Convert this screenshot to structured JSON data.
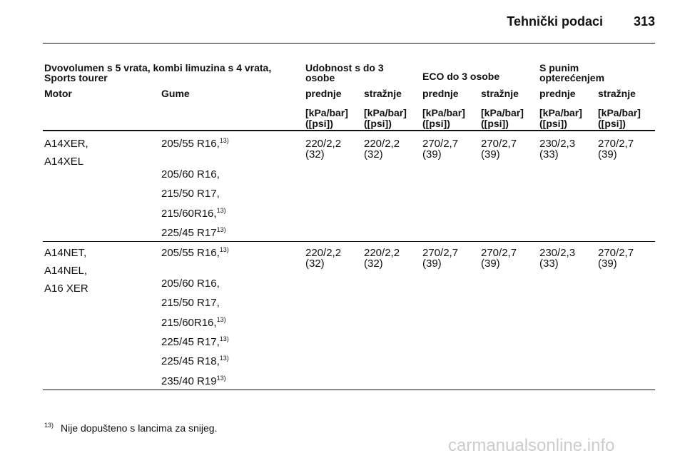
{
  "header": {
    "title": "Tehnički podaci",
    "page": "313"
  },
  "table": {
    "group_headers": [
      "Dvovolumen s 5 vrata, kombi limuzina s 4 vrata, Sports tourer",
      "Udobnost s do 3 osobe",
      "ECO do 3 osobe",
      "S punim opterećenjem"
    ],
    "columns": [
      "Motor",
      "Gume",
      "prednje",
      "stražnje",
      "prednje",
      "stražnje",
      "prednje",
      "stražnje"
    ],
    "units": [
      [
        "[kPa/bar]",
        "([psi])"
      ],
      [
        "[kPa/bar]",
        "([psi])"
      ],
      [
        "[kPa/bar]",
        "([psi])"
      ],
      [
        "[kPa/bar]",
        "([psi])"
      ],
      [
        "[kPa/bar]",
        "([psi])"
      ],
      [
        "[kPa/bar]",
        "([psi])"
      ]
    ],
    "rows": [
      {
        "motors": [
          "A14XER,",
          "A14XEL"
        ],
        "tires": [
          {
            "text": "205/55 R16,",
            "note": "13)"
          },
          {
            "text": "205/60 R16,"
          },
          {
            "text": "215/50 R17,"
          },
          {
            "text": "215/60R16,",
            "note": "13)"
          },
          {
            "text": "225/45 R17",
            "note": "13)"
          }
        ],
        "pressures": [
          [
            "220/2,2",
            "(32)"
          ],
          [
            "220/2,2",
            "(32)"
          ],
          [
            "270/2,7",
            "(39)"
          ],
          [
            "270/2,7",
            "(39)"
          ],
          [
            "230/2,3",
            "(33)"
          ],
          [
            "270/2,7",
            "(39)"
          ]
        ]
      },
      {
        "motors": [
          "A14NET,",
          "A14NEL,",
          "A16 XER"
        ],
        "tires": [
          {
            "text": "205/55 R16,",
            "note": "13)"
          },
          {
            "text": "205/60 R16,"
          },
          {
            "text": "215/50 R17,"
          },
          {
            "text": "215/60R16,",
            "note": "13)"
          },
          {
            "text": "225/45 R17,",
            "note": "13)"
          },
          {
            "text": "225/45 R18,",
            "note": "13)"
          },
          {
            "text": "235/40 R19",
            "note": "13)"
          }
        ],
        "pressures": [
          [
            "220/2,2",
            "(32)"
          ],
          [
            "220/2,2",
            "(32)"
          ],
          [
            "270/2,7",
            "(39)"
          ],
          [
            "270/2,7",
            "(39)"
          ],
          [
            "230/2,3",
            "(33)"
          ],
          [
            "270/2,7",
            "(39)"
          ]
        ]
      }
    ]
  },
  "footnote": {
    "mark": "13)",
    "text": "Nije dopušteno s lancima za snijeg."
  },
  "watermark": "carmanualsonline.info"
}
